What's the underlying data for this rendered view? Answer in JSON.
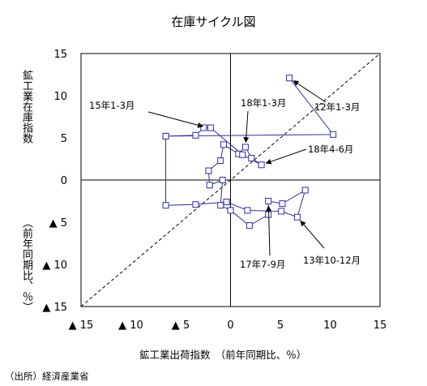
{
  "chart_data": {
    "type": "scatter",
    "title": "在庫サイクル図",
    "xlabel": "鉱工業出荷指数　（前年同期比、％）",
    "ylabel": "鉱工業在庫指数",
    "ylabel_unit": "（前年同期比、％）",
    "source": "（出所）経済産業省",
    "xlim": [
      -15,
      15
    ],
    "ylim": [
      -15,
      15
    ],
    "x_ticks": [
      "▲ 15",
      "▲ 10",
      "▲ 5",
      "0",
      "5",
      "10",
      "15"
    ],
    "y_ticks": [
      "15",
      "10",
      "5",
      "0",
      "▲ 5",
      "▲ 10",
      "▲ 15"
    ],
    "tick_values": [
      -15,
      -10,
      -5,
      0,
      5,
      10,
      15
    ],
    "grid": false,
    "diagonal_reference": "dashed 45° line",
    "series": [
      {
        "color": "#2e3192",
        "points": [
          {
            "x": 5.9,
            "y": 12.1
          },
          {
            "x": 10.3,
            "y": 5.4
          },
          {
            "x": -6.5,
            "y": 5.2
          },
          {
            "x": -6.5,
            "y": -3.0
          },
          {
            "x": -3.5,
            "y": -2.9
          },
          {
            "x": -0.4,
            "y": -2.6
          },
          {
            "x": 1.7,
            "y": -3.6
          },
          {
            "x": 5.1,
            "y": -3.7
          },
          {
            "x": 6.7,
            "y": -4.4
          },
          {
            "x": 7.5,
            "y": -1.2
          },
          {
            "x": 5.2,
            "y": -2.8
          },
          {
            "x": 3.8,
            "y": -2.5
          },
          {
            "x": 3.8,
            "y": -4.1
          },
          {
            "x": 1.9,
            "y": -5.4
          },
          {
            "x": 0.0,
            "y": -3.6
          },
          {
            "x": -1.0,
            "y": -3.0
          },
          {
            "x": -0.8,
            "y": 0.0
          },
          {
            "x": -2.1,
            "y": -0.6
          },
          {
            "x": -2.2,
            "y": 1.1
          },
          {
            "x": -1.0,
            "y": 2.3
          },
          {
            "x": -0.7,
            "y": 4.2
          },
          {
            "x": 0.8,
            "y": 3.1
          },
          {
            "x": 1.5,
            "y": 3.9
          },
          {
            "x": 2.1,
            "y": 2.6
          },
          {
            "x": 3.1,
            "y": 1.8
          },
          {
            "x": 1.2,
            "y": 3.0
          },
          {
            "x": -2.0,
            "y": 6.2
          },
          {
            "x": -2.7,
            "y": 6.2
          },
          {
            "x": -3.5,
            "y": 5.3
          },
          {
            "x": -6.5,
            "y": 5.2
          }
        ]
      }
    ],
    "annotations": [
      {
        "label": "12年1-3月",
        "x": 5.9,
        "y": 12.1
      },
      {
        "label": "15年1-3月",
        "x": -2.3,
        "y": 6.2
      },
      {
        "label": "18年1-3月",
        "x": 1.5,
        "y": 3.9
      },
      {
        "label": "18年4-6月",
        "x": 3.1,
        "y": 1.8
      },
      {
        "label": "17年7-9月",
        "x": 3.8,
        "y": -2.5
      },
      {
        "label": "13年10-12月",
        "x": 6.7,
        "y": -4.4
      }
    ]
  }
}
